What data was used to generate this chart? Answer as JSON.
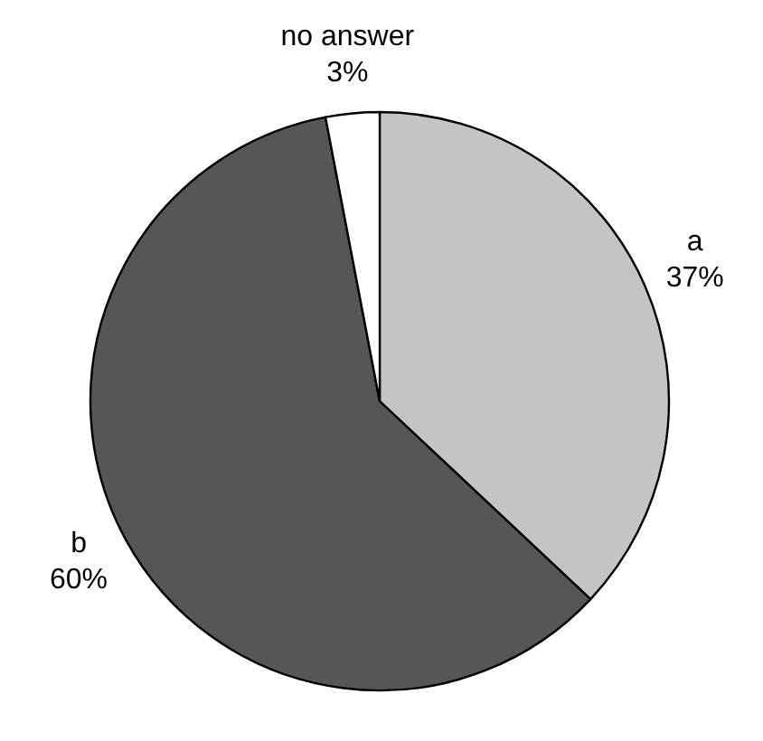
{
  "chart_data": {
    "type": "pie",
    "categories": [
      "a",
      "b",
      "no answer"
    ],
    "values": [
      37,
      60,
      3
    ],
    "value_labels": [
      "37%",
      "60%",
      "3%"
    ],
    "colors": [
      "#c4c4c4",
      "#565656",
      "#ffffff"
    ]
  }
}
